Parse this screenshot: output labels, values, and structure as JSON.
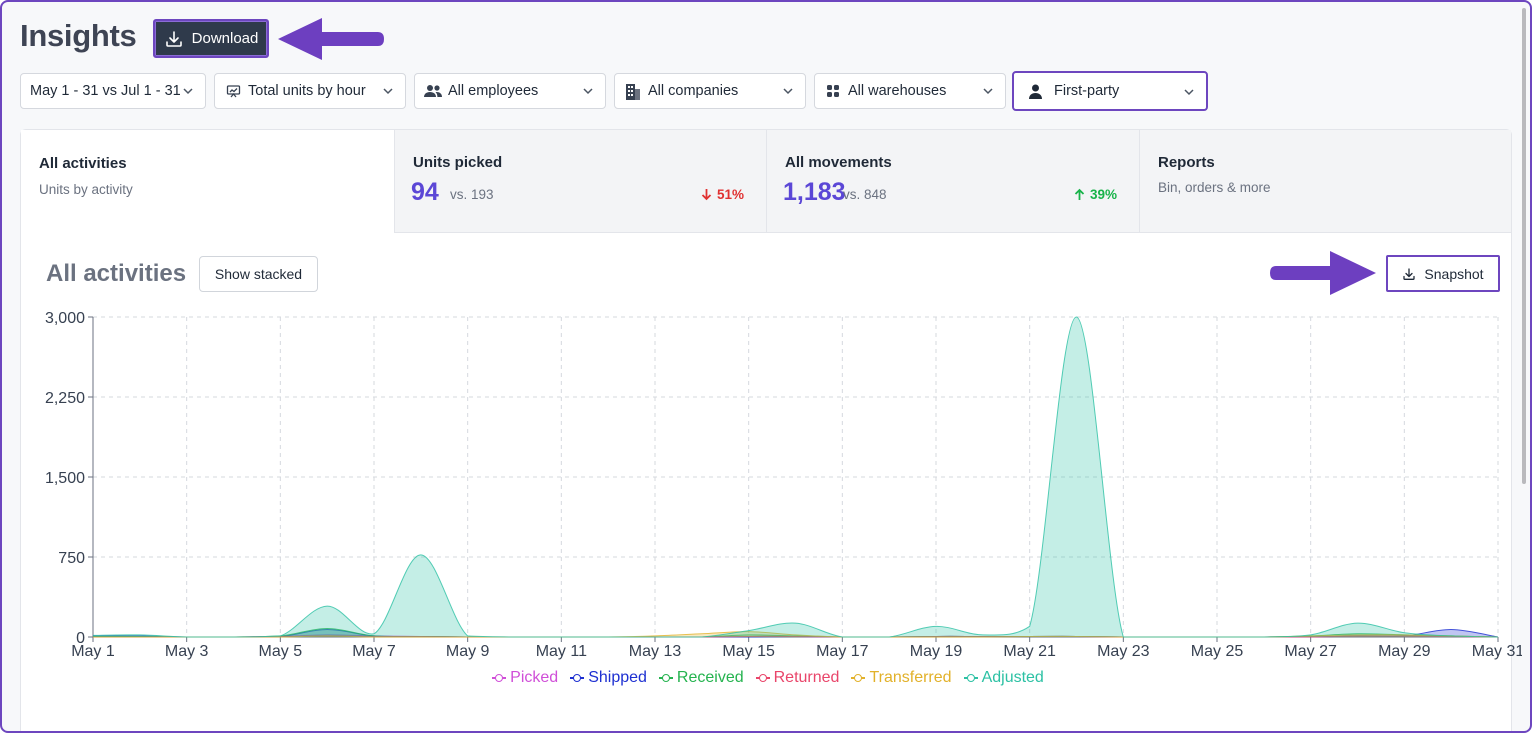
{
  "header": {
    "title": "Insights",
    "download_label": "Download"
  },
  "filters": [
    {
      "label": "May 1 - 31 vs Jul 1 - 31",
      "icon": "none"
    },
    {
      "label": "Total units by hour",
      "icon": "chart-presentation-icon"
    },
    {
      "label": "All employees",
      "icon": "users-icon"
    },
    {
      "label": "All companies",
      "icon": "building-icon"
    },
    {
      "label": "All warehouses",
      "icon": "grid-dots-icon"
    },
    {
      "label": "First-party",
      "icon": "person-icon"
    }
  ],
  "tabs": [
    {
      "title": "All activities",
      "subtitle": "Units by activity"
    },
    {
      "title": "Units picked",
      "value": "94",
      "vs": "vs. 193",
      "delta": "51%",
      "direction": "down"
    },
    {
      "title": "All movements",
      "value": "1,183",
      "vs": "vs. 848",
      "delta": "39%",
      "direction": "up"
    },
    {
      "title": "Reports",
      "subtitle": "Bin, orders & more"
    }
  ],
  "chart_section": {
    "title": "All activities",
    "stacked_label": "Show stacked",
    "snapshot_label": "Snapshot"
  },
  "colors": {
    "accent": "#6d46bf",
    "metric": "#5b47d6",
    "down": "#e03131",
    "up": "#18b34a"
  },
  "chart_data": {
    "type": "area",
    "x": [
      "May 1",
      "May 2",
      "May 3",
      "May 4",
      "May 5",
      "May 6",
      "May 7",
      "May 8",
      "May 9",
      "May 10",
      "May 11",
      "May 12",
      "May 13",
      "May 14",
      "May 15",
      "May 16",
      "May 17",
      "May 18",
      "May 19",
      "May 20",
      "May 21",
      "May 22",
      "May 23",
      "May 24",
      "May 25",
      "May 26",
      "May 27",
      "May 28",
      "May 29",
      "May 30",
      "May 31"
    ],
    "x_tick_labels": [
      "May 1",
      "May 3",
      "May 5",
      "May 7",
      "May 9",
      "May 11",
      "May 13",
      "May 15",
      "May 17",
      "May 19",
      "May 21",
      "May 23",
      "May 25",
      "May 27",
      "May 29",
      "May 31"
    ],
    "ylim": [
      0,
      3000
    ],
    "y_ticks": [
      "0",
      "750",
      "1,500",
      "2,250",
      "3,000"
    ],
    "y_tick_values": [
      0,
      750,
      1500,
      2250,
      3000
    ],
    "grid": true,
    "legend_position": "bottom",
    "series": [
      {
        "name": "Picked",
        "color": "#d04fd8",
        "values": [
          5,
          5,
          0,
          0,
          5,
          20,
          10,
          5,
          0,
          0,
          0,
          0,
          0,
          0,
          5,
          5,
          0,
          0,
          5,
          5,
          5,
          5,
          0,
          0,
          0,
          0,
          5,
          5,
          5,
          5,
          0
        ]
      },
      {
        "name": "Shipped",
        "color": "#1d2fd1",
        "values": [
          10,
          10,
          0,
          0,
          5,
          70,
          10,
          5,
          0,
          0,
          0,
          0,
          0,
          0,
          0,
          5,
          0,
          0,
          5,
          5,
          5,
          5,
          0,
          0,
          0,
          0,
          0,
          10,
          10,
          70,
          0
        ]
      },
      {
        "name": "Received",
        "color": "#25b34f",
        "values": [
          5,
          5,
          0,
          0,
          10,
          80,
          10,
          5,
          0,
          0,
          0,
          0,
          0,
          0,
          20,
          10,
          0,
          0,
          5,
          5,
          5,
          5,
          0,
          0,
          0,
          0,
          10,
          30,
          20,
          10,
          0
        ]
      },
      {
        "name": "Returned",
        "color": "#e9456a",
        "values": [
          0,
          0,
          0,
          0,
          5,
          10,
          5,
          5,
          0,
          0,
          0,
          0,
          0,
          0,
          5,
          5,
          0,
          0,
          5,
          5,
          5,
          5,
          0,
          0,
          0,
          0,
          0,
          10,
          10,
          5,
          0
        ]
      },
      {
        "name": "Transferred",
        "color": "#e2b12a",
        "values": [
          0,
          0,
          0,
          0,
          0,
          10,
          0,
          0,
          0,
          0,
          0,
          0,
          10,
          30,
          50,
          20,
          0,
          0,
          0,
          0,
          5,
          5,
          0,
          0,
          0,
          0,
          10,
          20,
          20,
          10,
          0
        ]
      },
      {
        "name": "Adjusted",
        "color": "#2cc1a4",
        "values": [
          15,
          20,
          0,
          0,
          10,
          290,
          30,
          770,
          10,
          0,
          0,
          0,
          0,
          0,
          60,
          130,
          0,
          0,
          100,
          20,
          100,
          3000,
          0,
          0,
          0,
          0,
          20,
          130,
          40,
          10,
          0
        ]
      }
    ]
  }
}
